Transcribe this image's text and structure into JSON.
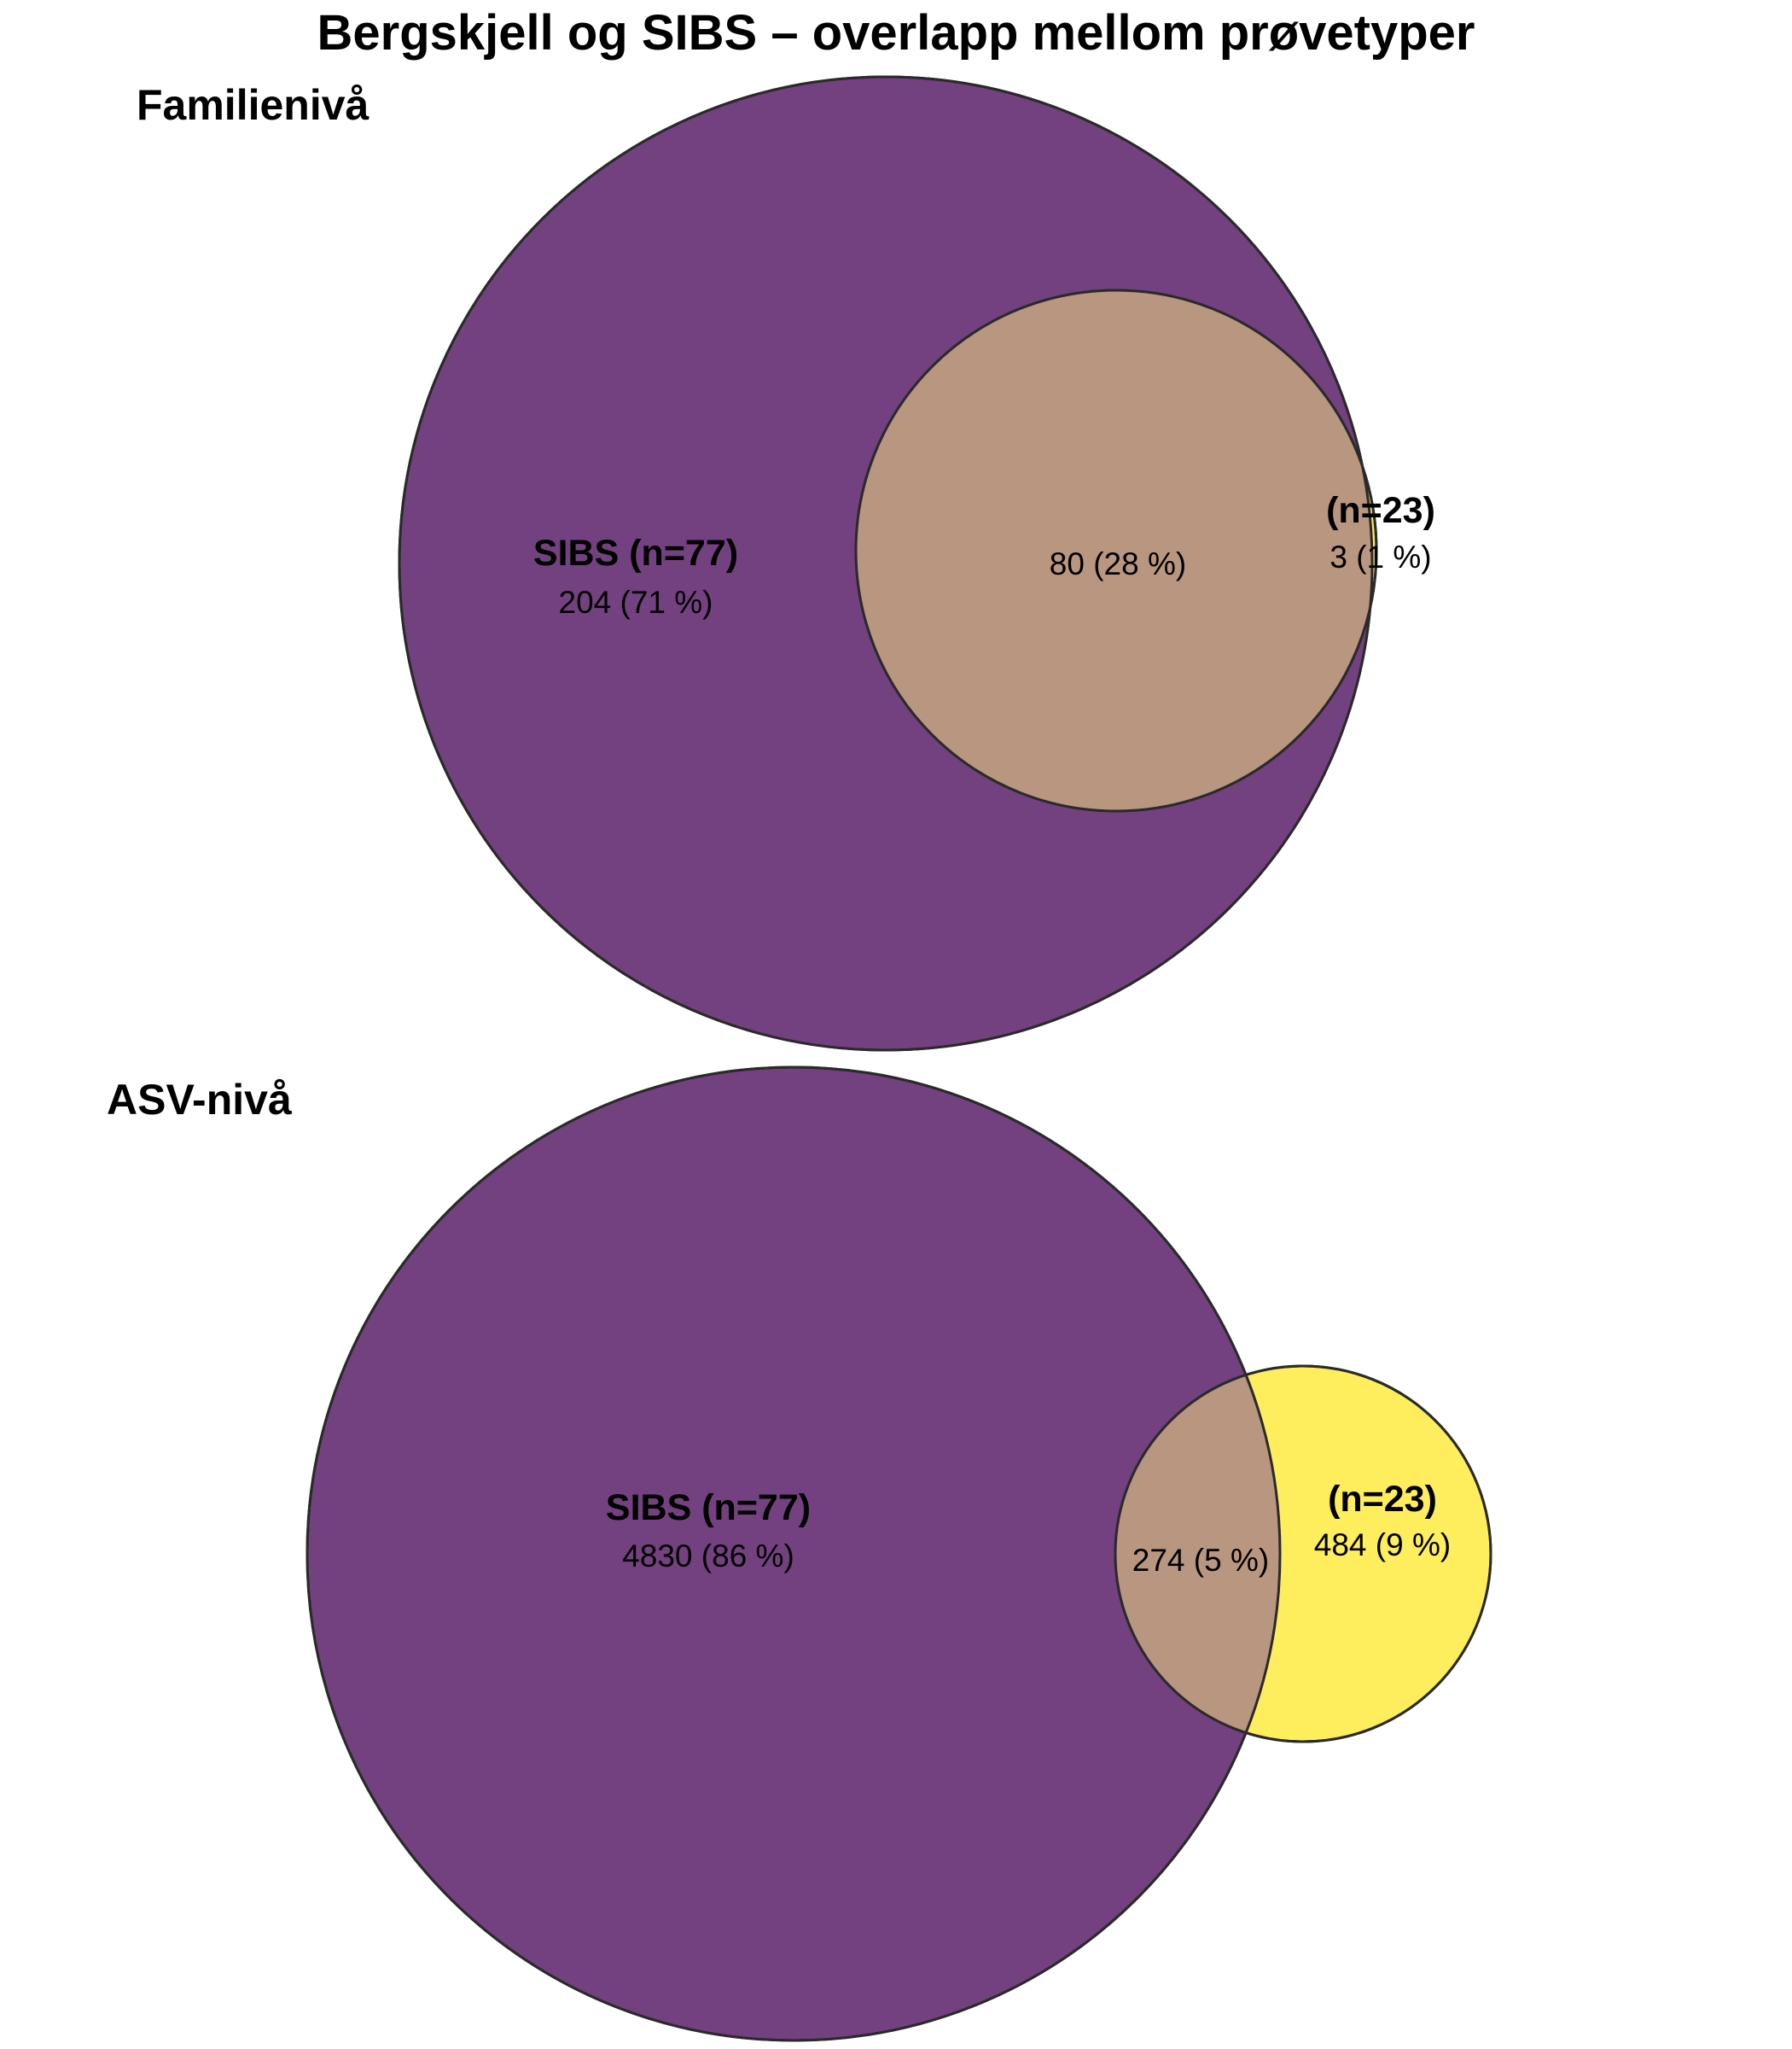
{
  "title": "Bergskjell og SIBS – overlapp mellom prøvetyper",
  "colors": {
    "sibs": "#440154",
    "other": "#fde725",
    "overlap": "#b99680"
  },
  "circle_opacity": 0.75,
  "panels": [
    {
      "title": "Familienivå",
      "left_set": {
        "label": "SIBS (n=77)",
        "count_text": "204 (71 %)",
        "count": 204,
        "percent": 71
      },
      "right_set": {
        "label": "(n=23)",
        "count_text": "3 (1 %)",
        "count": 3,
        "percent": 1
      },
      "overlap": {
        "count_text": "80 (28 %)",
        "count": 80,
        "percent": 28
      }
    },
    {
      "title": "ASV-nivå",
      "left_set": {
        "label": "SIBS (n=77)",
        "count_text": "4830 (86 %)",
        "count": 4830,
        "percent": 86
      },
      "right_set": {
        "label": "(n=23)",
        "count_text": "484 (9 %)",
        "count": 484,
        "percent": 9
      },
      "overlap": {
        "count_text": "274 (5 %)",
        "count": 274,
        "percent": 5
      }
    }
  ]
}
